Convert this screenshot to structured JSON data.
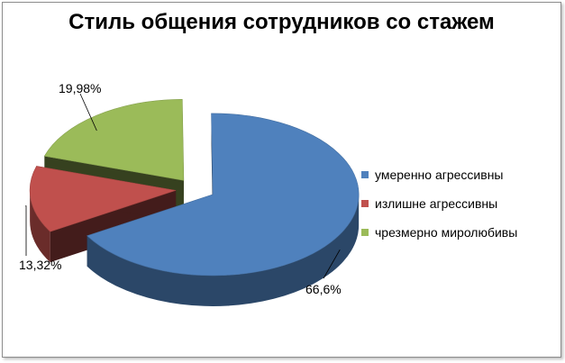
{
  "chart_data": {
    "type": "pie",
    "title": "Стиль общения сотрудников со стажем",
    "slices": [
      {
        "name": "умеренно агрессивны",
        "value": 66.6,
        "label": "66,6%",
        "color": "#4F81BD"
      },
      {
        "name": "излишне агрессивны",
        "value": 13.32,
        "label": "13,32%",
        "color": "#C0504D"
      },
      {
        "name": "чрезмерно миролюбивы",
        "value": 19.98,
        "label": "19,98%",
        "color": "#9BBB59"
      }
    ],
    "exploded": true,
    "three_d": true,
    "legend_position": "right"
  }
}
